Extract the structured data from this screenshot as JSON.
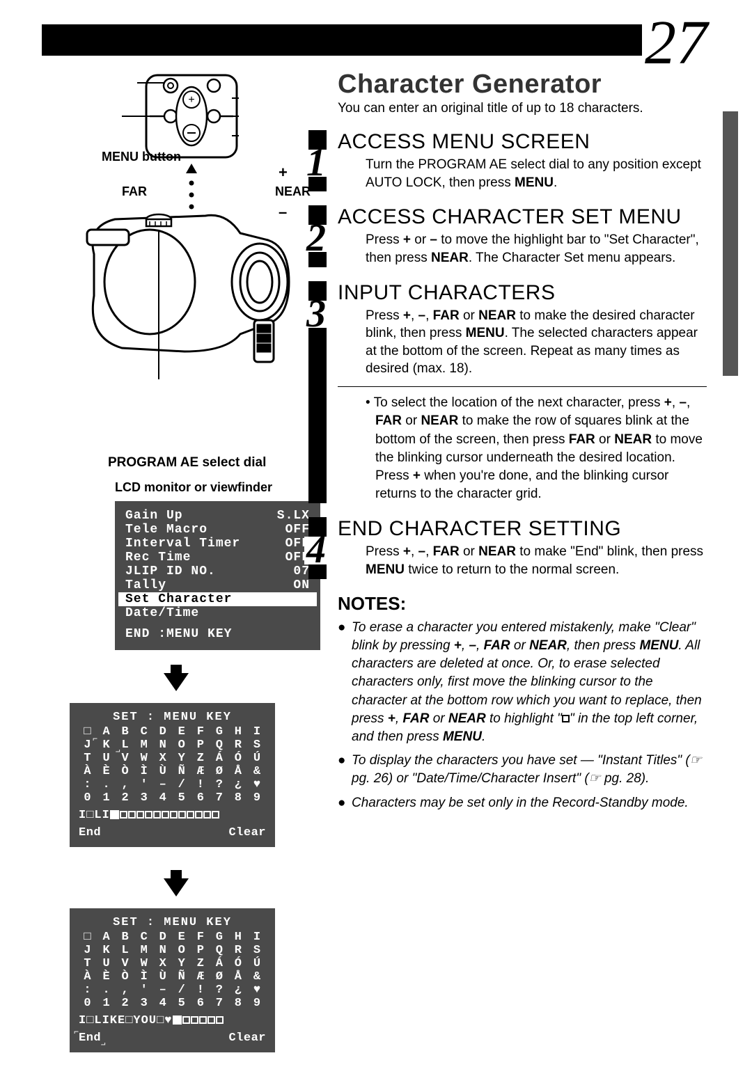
{
  "page": {
    "lang_label": "EN",
    "number": "27"
  },
  "labels": {
    "menu_button": "MENU button",
    "far": "FAR",
    "near": "NEAR",
    "plus": "+",
    "minus": "–",
    "program_ae": "PROGRAM AE select dial",
    "lcd_monitor": "LCD monitor or viewfinder"
  },
  "menu_screen": {
    "rows": [
      {
        "label": "Gain Up",
        "value": "S.LX"
      },
      {
        "label": "Tele Macro",
        "value": "OFF"
      },
      {
        "label": "Interval Timer",
        "value": "OFF"
      },
      {
        "label": "Rec Time",
        "value": "OFF"
      },
      {
        "label": "JLIP ID NO.",
        "value": "07"
      },
      {
        "label": "Tally",
        "value": "ON"
      }
    ],
    "highlight": "Set Character",
    "after_highlight": "Date/Time",
    "end": "END :MENU KEY"
  },
  "charset": {
    "title": "SET : MENU KEY",
    "grid": [
      [
        "□",
        "A",
        "B",
        "C",
        "D",
        "E",
        "F",
        "G",
        "H",
        "I"
      ],
      [
        "J",
        "K",
        "L",
        "M",
        "N",
        "O",
        "P",
        "Q",
        "R",
        "S"
      ],
      [
        "T",
        "U",
        "V",
        "W",
        "X",
        "Y",
        "Z",
        "Á",
        "Ó",
        "Ú"
      ],
      [
        "À",
        "È",
        "Ò",
        "Ì",
        "Ù",
        "Ñ",
        "Æ",
        "Ø",
        "Å",
        "&"
      ],
      [
        ":",
        ".",
        ",",
        "'",
        "–",
        "/",
        "!",
        "?",
        "¿",
        "♥"
      ],
      [
        "0",
        "1",
        "2",
        "3",
        "4",
        "5",
        "6",
        "7",
        "8",
        "9"
      ]
    ],
    "entry1_prefix": "I□LI",
    "entry2_text": "I□LIKE□YOU□♥",
    "end": "End",
    "clear": "Clear"
  },
  "main": {
    "title": "Character Generator",
    "intro": "You can enter an original title of up to 18 characters.",
    "steps": [
      {
        "num": "1",
        "title": "ACCESS MENU SCREEN",
        "body": "Turn the PROGRAM AE select dial to any position except AUTO LOCK, then press <b>MENU</b>."
      },
      {
        "num": "2",
        "title": "ACCESS CHARACTER SET MENU",
        "body": "Press <b>+</b> or <b>–</b> to move the highlight bar to \"Set Character\", then press <b>NEAR</b>. The Character Set menu appears."
      },
      {
        "num": "3",
        "title": "INPUT CHARACTERS",
        "body": "Press <b>+</b>, <b>–</b>, <b>FAR</b> or <b>NEAR</b> to make the desired character blink, then press <b>MENU</b>. The selected characters appear at the bottom of the screen. Repeat as many times as desired (max. 18).",
        "bullet": "To select the location of the next character, press <b>+</b>, <b>–</b>, <b>FAR</b> or <b>NEAR</b> to make the row of squares blink at the bottom of the screen, then press <b>FAR</b> or <b>NEAR</b> to move the blinking cursor underneath the desired location. Press <b>+</b> when you're done, and the blinking cursor returns to the character grid."
      },
      {
        "num": "4",
        "title": "END CHARACTER SETTING",
        "body": "Press <b>+</b>, <b>–</b>, <b>FAR</b> or <b>NEAR</b> to make \"End\" blink, then press <b>MENU</b> twice to return to the normal screen."
      }
    ],
    "notes_title": "NOTES:",
    "notes": [
      "To erase a character you entered mistakenly, make \"Clear\" blink by pressing <b>+</b>, <b>–</b>, <b>FAR</b> or <b>NEAR</b>, then press <b>MENU</b>. All characters are deleted at once. Or, to erase selected characters only, first move the blinking cursor to the character at the bottom row which you want to replace, then press <b>+</b>, <b>FAR</b> or <b>NEAR</b> to highlight \"<span class='boxchar'></span>\" in the top left corner, and then press <b>MENU</b>.",
      "To display the characters you have set — \"Instant Titles\" (☞ pg. 26) or \"Date/Time/Character Insert\" (☞ pg. 28).",
      "Characters may be set only in the Record-Standby mode."
    ]
  }
}
